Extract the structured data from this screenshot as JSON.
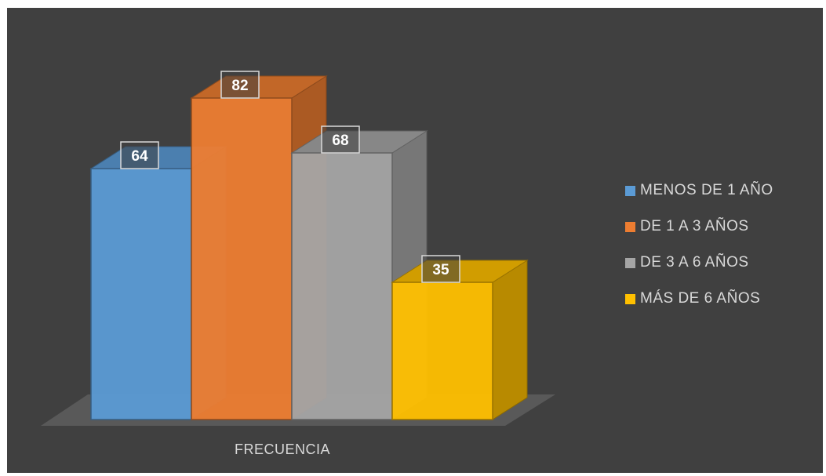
{
  "chart_data": {
    "type": "bar",
    "title": "",
    "xlabel": "",
    "ylabel": "",
    "categories": [
      "FRECUENCIA"
    ],
    "series": [
      {
        "name": "MENOS DE 1 AÑO",
        "values": [
          64
        ],
        "color": "#5b9bd5"
      },
      {
        "name": "DE 1 A 3 AÑOS",
        "values": [
          82
        ],
        "color": "#ed7d31"
      },
      {
        "name": "DE 3 A 6 AÑOS",
        "values": [
          68
        ],
        "color": "#a5a5a5"
      },
      {
        "name": "MÁS DE 6 AÑOS",
        "values": [
          35
        ],
        "color": "#ffc000"
      }
    ],
    "ylim": [
      0,
      100
    ],
    "grid": false,
    "legend_position": "right",
    "style": "3d-clustered-column"
  },
  "colors": {
    "background": "#404040",
    "floor": "#595959",
    "text": "#d9d9d9"
  }
}
